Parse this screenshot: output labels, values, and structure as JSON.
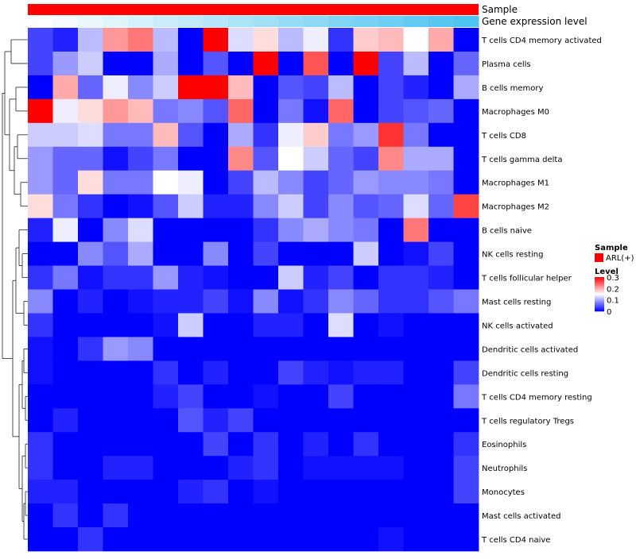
{
  "chart_data": {
    "type": "heatmap",
    "title": "",
    "annotation_tracks": {
      "sample": {
        "label": "Sample",
        "color": "#ff0000"
      },
      "gene_expression": {
        "label": "Gene expression level",
        "gradient_start": "#ffffff",
        "gradient_end": "#4dc3f0"
      }
    },
    "rows": [
      "T cells CD4 memory activated",
      "Plasma cells",
      "B cells memory",
      "Macrophages M0",
      "T cells CD8",
      "T cells gamma delta",
      "Macrophages M1",
      "Macrophages M2",
      "B cells naive",
      "NK cells resting",
      "T cells follicular helper",
      "Mast cells resting",
      "NK cells activated",
      "Dendritic cells activated",
      "Dendritic cells resting",
      "T cells CD4 memory resting",
      "T cells regulatory  Tregs",
      "Eosinophils",
      "Neutrophils",
      "Monocytes",
      "Mast cells activated",
      "T cells CD4 naive"
    ],
    "n_columns": 18,
    "values": [
      [
        0.04,
        0.02,
        0.11,
        0.21,
        0.23,
        0.11,
        0.0,
        0.3,
        0.13,
        0.17,
        0.11,
        0.14,
        0.03,
        0.18,
        0.19,
        0.15,
        0.2,
        0.0
      ],
      [
        0.04,
        0.09,
        0.12,
        0.0,
        0.0,
        0.1,
        0.0,
        0.05,
        0.0,
        0.3,
        0.0,
        0.25,
        0.0,
        0.3,
        0.04,
        0.11,
        0.0,
        0.06
      ],
      [
        0.0,
        0.2,
        0.06,
        0.14,
        0.08,
        0.12,
        0.3,
        0.3,
        0.19,
        0.0,
        0.05,
        0.04,
        0.11,
        0.0,
        0.04,
        0.02,
        0.0,
        0.1
      ],
      [
        0.3,
        0.14,
        0.17,
        0.21,
        0.19,
        0.07,
        0.08,
        0.05,
        0.24,
        0.0,
        0.07,
        0.01,
        0.24,
        0.0,
        0.04,
        0.05,
        0.06,
        0.0
      ],
      [
        0.12,
        0.12,
        0.13,
        0.07,
        0.07,
        0.19,
        0.05,
        0.0,
        0.1,
        0.03,
        0.14,
        0.18,
        0.07,
        0.09,
        0.27,
        0.07,
        0.0,
        0.0
      ],
      [
        0.09,
        0.06,
        0.06,
        0.01,
        0.04,
        0.07,
        0.0,
        0.0,
        0.22,
        0.05,
        0.15,
        0.12,
        0.06,
        0.04,
        0.22,
        0.1,
        0.1,
        0.0
      ],
      [
        0.09,
        0.06,
        0.17,
        0.07,
        0.07,
        0.15,
        0.14,
        0.0,
        0.04,
        0.11,
        0.08,
        0.04,
        0.06,
        0.09,
        0.08,
        0.08,
        0.07,
        0.0
      ],
      [
        0.17,
        0.07,
        0.03,
        0.0,
        0.01,
        0.05,
        0.12,
        0.02,
        0.02,
        0.08,
        0.12,
        0.04,
        0.08,
        0.05,
        0.06,
        0.13,
        0.06,
        0.26
      ],
      [
        0.02,
        0.14,
        0.0,
        0.08,
        0.13,
        0.0,
        0.0,
        0.0,
        0.0,
        0.03,
        0.08,
        0.1,
        0.08,
        0.07,
        0.0,
        0.23,
        0.0,
        0.0
      ],
      [
        0.0,
        0.0,
        0.08,
        0.05,
        0.1,
        0.0,
        0.0,
        0.08,
        0.0,
        0.04,
        0.0,
        0.0,
        0.0,
        0.12,
        0.0,
        0.01,
        0.04,
        0.0
      ],
      [
        0.03,
        0.07,
        0.01,
        0.03,
        0.03,
        0.09,
        0.02,
        0.01,
        0.0,
        0.0,
        0.12,
        0.02,
        0.04,
        0.0,
        0.03,
        0.03,
        0.02,
        0.0
      ],
      [
        0.08,
        0.0,
        0.02,
        0.0,
        0.01,
        0.02,
        0.02,
        0.04,
        0.01,
        0.08,
        0.01,
        0.03,
        0.08,
        0.06,
        0.03,
        0.03,
        0.05,
        0.07
      ],
      [
        0.03,
        0.0,
        0.0,
        0.0,
        0.0,
        0.01,
        0.12,
        0.0,
        0.0,
        0.02,
        0.02,
        0.0,
        0.13,
        0.0,
        0.01,
        0.0,
        0.0,
        0.0
      ],
      [
        0.01,
        0.0,
        0.03,
        0.09,
        0.08,
        0.0,
        0.0,
        0.0,
        0.0,
        0.0,
        0.0,
        0.0,
        0.0,
        0.0,
        0.0,
        0.0,
        0.0,
        0.0
      ],
      [
        0.01,
        0.0,
        0.0,
        0.0,
        0.0,
        0.03,
        0.0,
        0.02,
        0.0,
        0.0,
        0.04,
        0.02,
        0.01,
        0.02,
        0.02,
        0.0,
        0.0,
        0.04
      ],
      [
        0.0,
        0.0,
        0.0,
        0.0,
        0.0,
        0.02,
        0.04,
        0.0,
        0.0,
        0.01,
        0.0,
        0.0,
        0.04,
        0.0,
        0.0,
        0.0,
        0.0,
        0.07
      ],
      [
        0.0,
        0.02,
        0.0,
        0.0,
        0.0,
        0.0,
        0.05,
        0.02,
        0.04,
        0.0,
        0.0,
        0.0,
        0.0,
        0.0,
        0.0,
        0.0,
        0.0,
        0.0
      ],
      [
        0.03,
        0.0,
        0.0,
        0.0,
        0.0,
        0.0,
        0.0,
        0.04,
        0.0,
        0.03,
        0.0,
        0.02,
        0.0,
        0.03,
        0.0,
        0.0,
        0.0,
        0.03
      ],
      [
        0.03,
        0.0,
        0.0,
        0.02,
        0.02,
        0.0,
        0.0,
        0.0,
        0.02,
        0.03,
        0.0,
        0.01,
        0.01,
        0.01,
        0.01,
        0.0,
        0.0,
        0.04
      ],
      [
        0.02,
        0.02,
        0.0,
        0.0,
        0.0,
        0.0,
        0.02,
        0.03,
        0.0,
        0.01,
        0.0,
        0.0,
        0.0,
        0.0,
        0.0,
        0.0,
        0.0,
        0.04
      ],
      [
        0.0,
        0.03,
        0.0,
        0.03,
        0.0,
        0.0,
        0.0,
        0.0,
        0.0,
        0.0,
        0.0,
        0.0,
        0.0,
        0.0,
        0.0,
        0.0,
        0.0,
        0.0
      ],
      [
        0.0,
        0.0,
        0.03,
        0.0,
        0.0,
        0.0,
        0.0,
        0.0,
        0.0,
        0.0,
        0.0,
        0.0,
        0.0,
        0.0,
        0.01,
        0.0,
        0.0,
        0.0
      ]
    ],
    "color_scale": {
      "min": 0,
      "max": 0.3,
      "low_color": "#0000ff",
      "mid_color": "#ffffff",
      "high_color": "#ff0000",
      "midpoint": 0.15
    },
    "legend": {
      "placement": "right",
      "sample_title": "Sample",
      "sample_entry": "ARL(+)",
      "level_title": "Level",
      "ticks": [
        "0.3",
        "0.2",
        "0.1",
        "0"
      ],
      "tick_values": [
        0.3,
        0.2,
        0.1,
        0
      ]
    },
    "dendrogram": "row clustering tree on left",
    "grid": false
  }
}
